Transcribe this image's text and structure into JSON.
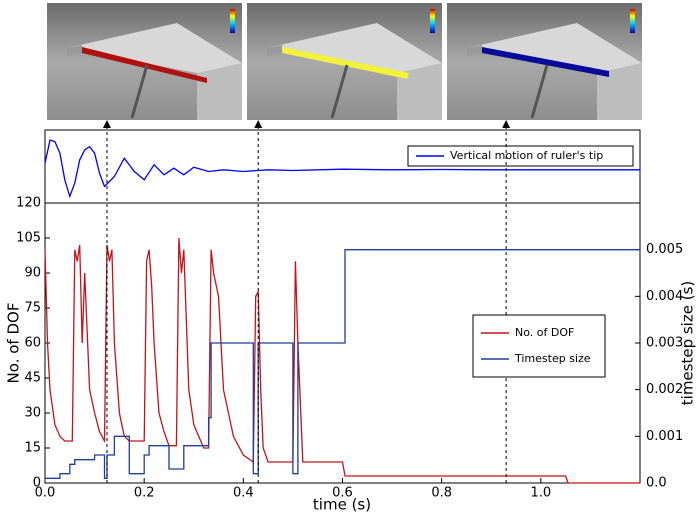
{
  "chart_data": [
    {
      "type": "line",
      "xlim": [
        0,
        1.2
      ],
      "ylim": [
        -1,
        1.2
      ],
      "legend": "upper right",
      "series": [
        {
          "name": "Vertical motion of ruler's tip",
          "color": "#0000ff",
          "x": [
            0,
            0.01,
            0.02,
            0.03,
            0.04,
            0.05,
            0.06,
            0.07,
            0.08,
            0.09,
            0.1,
            0.11,
            0.12,
            0.14,
            0.16,
            0.18,
            0.2,
            0.22,
            0.24,
            0.26,
            0.28,
            0.3,
            0.33,
            0.36,
            0.4,
            0.45,
            0.5,
            0.6,
            0.7,
            0.8,
            0.9,
            1.0,
            1.1,
            1.2
          ],
          "values": [
            0.2,
            0.9,
            0.85,
            0.5,
            -0.3,
            -0.8,
            -0.4,
            0.3,
            0.6,
            0.7,
            0.5,
            -0.1,
            -0.5,
            -0.2,
            0.35,
            -0.05,
            -0.3,
            0.15,
            -0.15,
            0.05,
            -0.15,
            0.08,
            -0.05,
            0.0,
            -0.05,
            0,
            -0.02,
            0.02,
            0,
            0.01,
            0,
            0,
            0,
            0
          ]
        }
      ]
    },
    {
      "type": "line",
      "x_label": "time (s)",
      "y_label": "No. of DOF",
      "y2_label": "timestep size (s)",
      "xlim": [
        0,
        1.2
      ],
      "xticks": [
        {
          "value": 0,
          "label": "0.0"
        },
        0.2,
        0.4,
        0.6,
        0.8,
        {
          "value": 1,
          "label": "1.0"
        }
      ],
      "ylim": [
        0,
        120
      ],
      "yticks": [
        0,
        15,
        30,
        45,
        60,
        75,
        90,
        105,
        120
      ],
      "y2lim": [
        0,
        0.006
      ],
      "y2ticks": [
        {
          "value": 0,
          "label": "0.0"
        },
        0.001,
        0.002,
        0.003,
        0.004,
        0.005
      ],
      "snapshot_times": [
        0.125,
        0.43,
        0.93
      ],
      "legend": "center right",
      "series": [
        {
          "name": "No. of DOF",
          "color": "#c0141c",
          "x": [
            0,
            0.005,
            0.01,
            0.02,
            0.03,
            0.04,
            0.055,
            0.06,
            0.065,
            0.07,
            0.075,
            0.08,
            0.09,
            0.1,
            0.11,
            0.12,
            0.125,
            0.13,
            0.135,
            0.14,
            0.15,
            0.16,
            0.17,
            0.2,
            0.205,
            0.21,
            0.215,
            0.22,
            0.23,
            0.24,
            0.25,
            0.265,
            0.27,
            0.275,
            0.28,
            0.29,
            0.3,
            0.32,
            0.33,
            0.335,
            0.34,
            0.35,
            0.36,
            0.38,
            0.4,
            0.42,
            0.425,
            0.43,
            0.435,
            0.44,
            0.45,
            0.5,
            0.505,
            0.51,
            0.52,
            0.6,
            0.605,
            1.05,
            1.055,
            1.2
          ],
          "values": [
            100,
            60,
            40,
            25,
            20,
            18,
            18,
            100,
            95,
            102,
            60,
            90,
            40,
            30,
            22,
            18,
            102,
            95,
            100,
            60,
            30,
            20,
            18,
            18,
            95,
            100,
            85,
            60,
            30,
            22,
            16,
            16,
            105,
            90,
            100,
            40,
            25,
            15,
            15,
            100,
            90,
            80,
            40,
            20,
            12,
            9,
            80,
            82,
            40,
            15,
            9,
            9,
            95,
            60,
            9,
            9,
            3,
            3,
            0,
            0
          ]
        },
        {
          "name": "Timestep size",
          "color": "#1f3d99",
          "axis": "y2",
          "x": [
            0,
            0.03,
            0.03,
            0.05,
            0.05,
            0.06,
            0.06,
            0.1,
            0.1,
            0.12,
            0.12,
            0.125,
            0.125,
            0.14,
            0.14,
            0.17,
            0.17,
            0.2,
            0.2,
            0.21,
            0.21,
            0.25,
            0.25,
            0.28,
            0.28,
            0.33,
            0.33,
            0.335,
            0.335,
            0.42,
            0.42,
            0.43,
            0.43,
            0.5,
            0.5,
            0.51,
            0.51,
            0.605,
            0.605,
            1.2
          ],
          "values": [
            0.0001,
            0.0001,
            0.0002,
            0.0002,
            0.0004,
            0.0004,
            0.0005,
            0.0005,
            0.0006,
            0.0006,
            0.0001,
            0.0001,
            0.0006,
            0.0006,
            0.001,
            0.001,
            0.0002,
            0.0002,
            0.0006,
            0.0006,
            0.0008,
            0.0008,
            0.0003,
            0.0003,
            0.0008,
            0.0008,
            0.0014,
            0.0014,
            0.003,
            0.003,
            0.0002,
            0.0002,
            0.003,
            0.003,
            0.0002,
            0.0002,
            0.003,
            0.003,
            0.005,
            0.005
          ]
        }
      ]
    }
  ]
}
